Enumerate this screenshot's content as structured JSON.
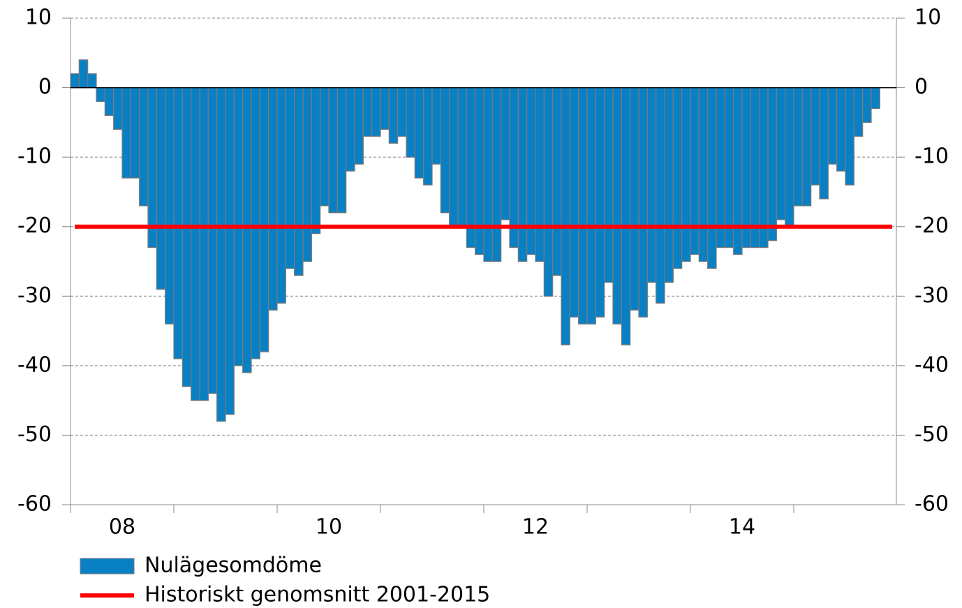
{
  "chart_data": {
    "type": "bar",
    "categories": [
      null,
      null,
      null,
      null,
      null,
      null,
      null,
      null,
      null,
      null,
      null,
      null,
      null,
      null,
      null,
      null,
      null,
      null,
      null,
      null,
      null,
      null,
      null,
      null,
      null,
      null,
      null,
      null,
      null,
      null,
      null,
      null,
      null,
      null,
      null,
      null,
      null,
      null,
      null,
      null,
      null,
      null,
      null,
      null,
      null,
      null,
      null,
      null,
      null,
      null,
      null,
      null,
      null,
      null,
      null,
      null,
      null,
      null,
      null,
      null,
      null,
      null,
      null,
      null,
      null,
      null,
      null,
      null,
      null,
      null,
      null,
      null,
      null,
      null,
      null,
      null,
      null,
      null,
      null,
      null,
      null,
      null,
      null,
      null,
      null,
      null,
      null,
      null,
      null,
      null,
      null,
      null,
      null,
      null
    ],
    "xtick_labels": [
      "08",
      "10",
      "12",
      "14"
    ],
    "series": [
      {
        "name": "Nulägesomdöme",
        "color": "#0a80c4",
        "values": [
          2,
          4,
          2,
          -2,
          -4,
          -6,
          -13,
          -13,
          -17,
          -23,
          -29,
          -34,
          -39,
          -43,
          -45,
          -45,
          -44,
          -48,
          -47,
          -40,
          -41,
          -39,
          -38,
          -32,
          -31,
          -26,
          -27,
          -25,
          -21,
          -17,
          -18,
          -18,
          -12,
          -11,
          -7,
          -7,
          -6,
          -8,
          -7,
          -10,
          -13,
          -14,
          -11,
          -18,
          -20,
          -20,
          -23,
          -24,
          -25,
          -25,
          -19,
          -23,
          -25,
          -24,
          -25,
          -30,
          -27,
          -37,
          -33,
          -34,
          -34,
          -33,
          -28,
          -34,
          -37,
          -32,
          -33,
          -28,
          -31,
          -28,
          -26,
          -25,
          -24,
          -25,
          -26,
          -23,
          -23,
          -24,
          -23,
          -23,
          -23,
          -22,
          -19,
          -20,
          -17,
          -17,
          -14,
          -16,
          -11,
          -12,
          -14,
          -7,
          -5,
          -3
        ]
      },
      {
        "name": "Historiskt genomsnitt 2001-2015",
        "color": "#ff0000",
        "type": "line",
        "value": -20
      }
    ],
    "ylim": [
      -60,
      10
    ],
    "yticks": [
      10,
      0,
      -10,
      -20,
      -30,
      -40,
      -50,
      -60
    ],
    "grid": true
  }
}
